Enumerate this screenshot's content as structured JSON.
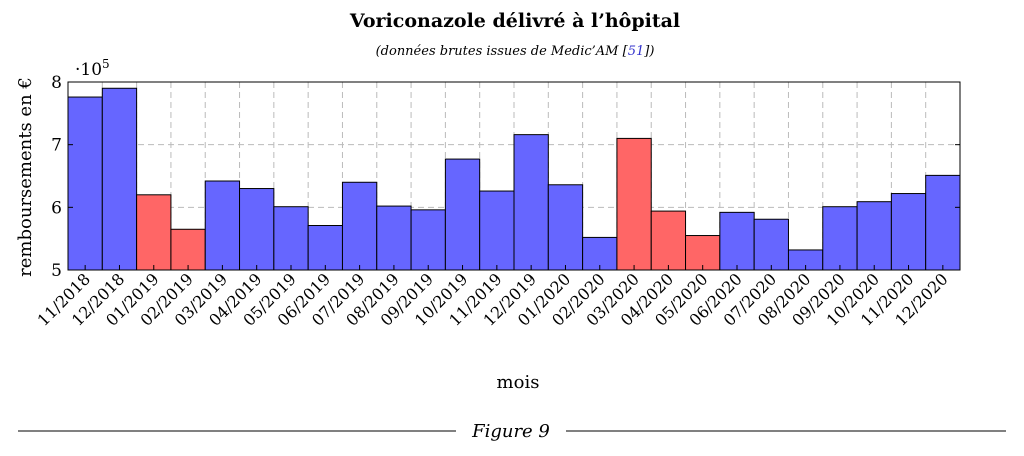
{
  "figure": {
    "caption": "Figure 9"
  },
  "chart_data": {
    "type": "bar",
    "title": "Voriconazole délivré à l’hôpital",
    "subtitle_text": "(données brutes issues de Medic’AM [",
    "subtitle_ref": "51",
    "subtitle_end": "])",
    "xlabel": "mois",
    "ylabel": "remboursements en €",
    "yscale_base": "·10",
    "yscale_exp": "5",
    "ylim": [
      5,
      8
    ],
    "yticks": [
      5,
      6,
      7,
      8
    ],
    "grid": true,
    "colors": {
      "normal": "#6666ff",
      "highlight": "#ff6666"
    },
    "categories": [
      "11/2018",
      "12/2018",
      "01/2019",
      "02/2019",
      "03/2019",
      "04/2019",
      "05/2019",
      "06/2019",
      "07/2019",
      "08/2019",
      "09/2019",
      "10/2019",
      "11/2019",
      "12/2019",
      "01/2020",
      "02/2020",
      "03/2020",
      "04/2020",
      "05/2020",
      "06/2020",
      "07/2020",
      "08/2020",
      "09/2020",
      "10/2020",
      "11/2020",
      "12/2020"
    ],
    "values": [
      7.76,
      7.9,
      6.2,
      5.65,
      6.42,
      6.3,
      6.01,
      5.71,
      6.4,
      6.02,
      5.96,
      6.77,
      6.26,
      7.16,
      6.36,
      5.52,
      7.1,
      5.94,
      5.55,
      5.92,
      5.81,
      5.32,
      6.01,
      6.09,
      6.22,
      6.51
    ],
    "highlighted": [
      false,
      false,
      true,
      true,
      false,
      false,
      false,
      false,
      false,
      false,
      false,
      false,
      false,
      false,
      false,
      false,
      true,
      true,
      true,
      false,
      false,
      false,
      false,
      false,
      false,
      false
    ]
  }
}
